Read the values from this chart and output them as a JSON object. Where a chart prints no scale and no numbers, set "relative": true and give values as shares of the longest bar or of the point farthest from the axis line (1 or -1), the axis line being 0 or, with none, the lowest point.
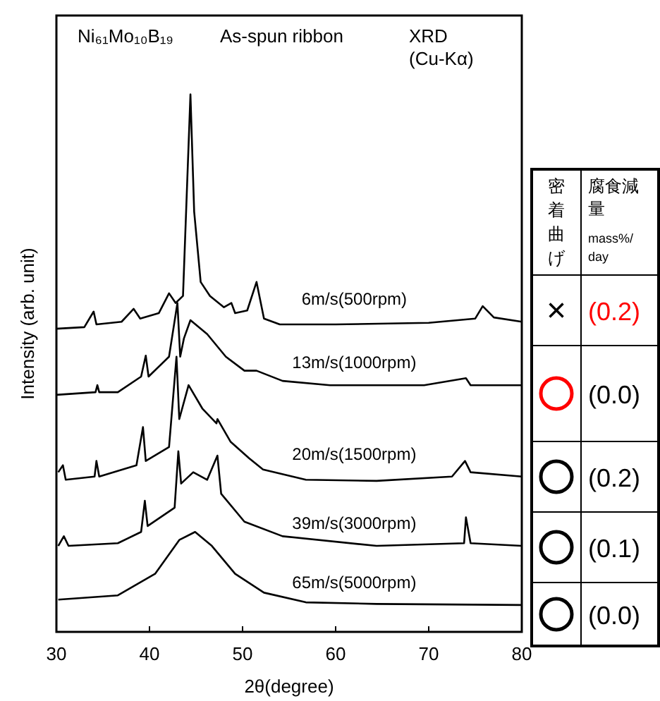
{
  "chart_data": [
    {
      "type": "line",
      "relative": true,
      "xlabel": "2θ(degree)",
      "ylabel": "Intensity (arb. unit)",
      "xlim": [
        30,
        80
      ],
      "xticks": [
        30,
        40,
        50,
        60,
        70,
        80
      ],
      "grid": false,
      "marker": "none",
      "line_style": "solid",
      "annotations": [
        "Ni₆₁Mo₁₀B₁₉",
        "As-spun ribbon",
        "XRD (Cu-Kα)"
      ],
      "series": [
        {
          "name": "6m/s(500rpm)",
          "color": "#000000",
          "x": [
            30,
            33,
            34,
            34.3,
            37,
            38.3,
            39,
            41,
            42.1,
            42.8,
            43.6,
            44.4,
            44.8,
            45.5,
            46.5,
            48,
            48.8,
            49.2,
            50.5,
            51.5,
            52.3,
            54,
            60,
            70,
            75,
            75.8,
            77,
            80
          ],
          "values": [
            0.564,
            0.567,
            0.596,
            0.572,
            0.577,
            0.601,
            0.583,
            0.593,
            0.63,
            0.612,
            0.625,
            1.0,
            0.782,
            0.651,
            0.625,
            0.604,
            0.612,
            0.593,
            0.598,
            0.651,
            0.583,
            0.572,
            0.572,
            0.575,
            0.583,
            0.606,
            0.585,
            0.577
          ]
        },
        {
          "name": "13m/s(1000rpm)",
          "color": "#000000",
          "x": [
            30,
            34.2,
            34.4,
            34.6,
            36.6,
            39.1,
            39.6,
            39.9,
            42.1,
            43,
            43.3,
            43.7,
            44.4,
            46.2,
            48.2,
            50.2,
            51.5,
            54.3,
            59.4,
            69.5,
            74,
            74.5,
            80
          ],
          "values": [
            0.441,
            0.446,
            0.459,
            0.446,
            0.446,
            0.475,
            0.514,
            0.475,
            0.512,
            0.612,
            0.512,
            0.546,
            0.58,
            0.554,
            0.512,
            0.486,
            0.486,
            0.467,
            0.459,
            0.459,
            0.472,
            0.459,
            0.459
          ]
        },
        {
          "name": "20m/s(1500rpm)",
          "color": "#000000",
          "x": [
            30.2,
            30.7,
            31,
            34.1,
            34.3,
            34.6,
            38.6,
            39.3,
            39.6,
            42.1,
            42.9,
            43.2,
            44.2,
            45.7,
            47.2,
            47.3,
            48.7,
            50.7,
            52.2,
            56.8,
            64.4,
            72.5,
            73.9,
            74.5,
            80
          ],
          "values": [
            0.297,
            0.31,
            0.283,
            0.289,
            0.318,
            0.289,
            0.31,
            0.381,
            0.318,
            0.344,
            0.512,
            0.396,
            0.459,
            0.415,
            0.388,
            0.396,
            0.354,
            0.323,
            0.302,
            0.283,
            0.281,
            0.289,
            0.318,
            0.297,
            0.289
          ]
        },
        {
          "name": "39m/s(3000rpm)",
          "color": "#000000",
          "x": [
            30.2,
            30.8,
            31.3,
            36.6,
            39.1,
            39.5,
            39.8,
            42.7,
            43.1,
            43.4,
            44.7,
            46.2,
            47.3,
            47.7,
            50.2,
            54.3,
            64.4,
            73.8,
            74,
            74.5,
            80
          ],
          "values": [
            0.16,
            0.178,
            0.16,
            0.165,
            0.186,
            0.244,
            0.197,
            0.231,
            0.336,
            0.276,
            0.297,
            0.283,
            0.328,
            0.257,
            0.205,
            0.178,
            0.16,
            0.165,
            0.213,
            0.165,
            0.16
          ]
        },
        {
          "name": "65m/s(5000rpm)",
          "color": "#000000",
          "x": [
            30.2,
            36.6,
            40.6,
            43.2,
            44.9,
            46.7,
            49.2,
            52.3,
            56.8,
            64.4,
            80
          ],
          "values": [
            0.06,
            0.068,
            0.108,
            0.171,
            0.186,
            0.16,
            0.108,
            0.073,
            0.055,
            0.052,
            0.05
          ]
        }
      ]
    },
    {
      "type": "other",
      "annotations": [
        "密着曲げ",
        "腐食減量",
        "mass%/day",
        "×",
        "(0.2)",
        "(0.0)",
        "(0.2)",
        "(0.1)",
        "(0.0)"
      ]
    }
  ]
}
